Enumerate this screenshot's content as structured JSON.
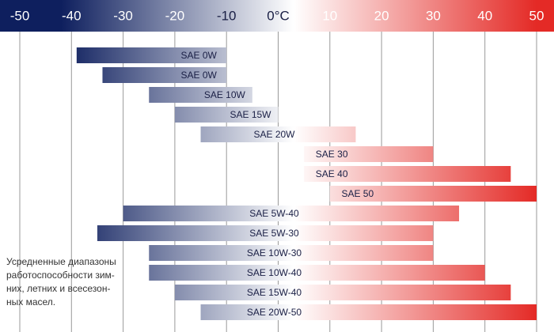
{
  "chart_data": {
    "type": "range-bar",
    "categories": [
      "SAE 0W",
      "SAE 0W",
      "SAE 10W",
      "SAE 15W",
      "SAE 20W",
      "SAE 30",
      "SAE 40",
      "SAE 50",
      "SAE 5W-40",
      "SAE 5W-30",
      "SAE 10W-30",
      "SAE 10W-40",
      "SAE 15W-40",
      "SAE 20W-50"
    ],
    "low": [
      -39,
      -34,
      -25,
      -20,
      -15,
      5,
      5,
      10,
      -30,
      -35,
      -25,
      -25,
      -20,
      -15
    ],
    "high": [
      -10,
      -10,
      -5,
      0,
      15,
      30,
      45,
      50,
      35,
      30,
      30,
      40,
      45,
      50
    ],
    "xlim": [
      -50,
      50
    ],
    "xticks": [
      -50,
      -40,
      -30,
      -20,
      -10,
      {
        "value": 0,
        "label": "0°C"
      },
      10,
      20,
      30,
      40,
      50
    ],
    "grid": true,
    "gradient": [
      "#0e1f5e",
      "#ffffff",
      "#e42a26"
    ],
    "annotation": [
      "Усредненные диапазоны",
      "работоспособности зим-",
      "них, летних и всесезон-",
      "ных масел."
    ]
  }
}
